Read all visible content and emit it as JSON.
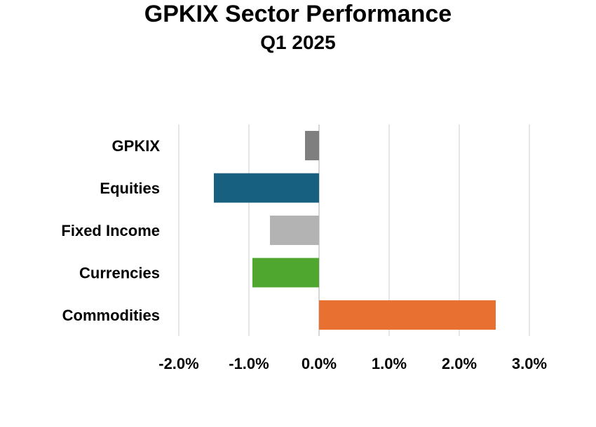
{
  "chart_data": {
    "type": "bar",
    "orientation": "horizontal",
    "title": "GPKIX Sector Performance",
    "subtitle": "Q1 2025",
    "categories": [
      "GPKIX",
      "Equities",
      "Fixed Income",
      "Currencies",
      "Commodities"
    ],
    "values": [
      -0.2,
      -1.5,
      -0.7,
      -0.95,
      2.52
    ],
    "colors": [
      "#7f7f7f",
      "#17607f",
      "#b3b3b3",
      "#4fa72f",
      "#e87131"
    ],
    "xlim": [
      -2.0,
      3.0
    ],
    "xticks": [
      "-2.0%",
      "-1.0%",
      "0.0%",
      "1.0%",
      "2.0%",
      "3.0%"
    ],
    "xtick_values": [
      -2.0,
      -1.0,
      0.0,
      1.0,
      2.0,
      3.0
    ],
    "value_unit": "%",
    "grid": true,
    "legend": "none",
    "xlabel": "",
    "ylabel": ""
  }
}
